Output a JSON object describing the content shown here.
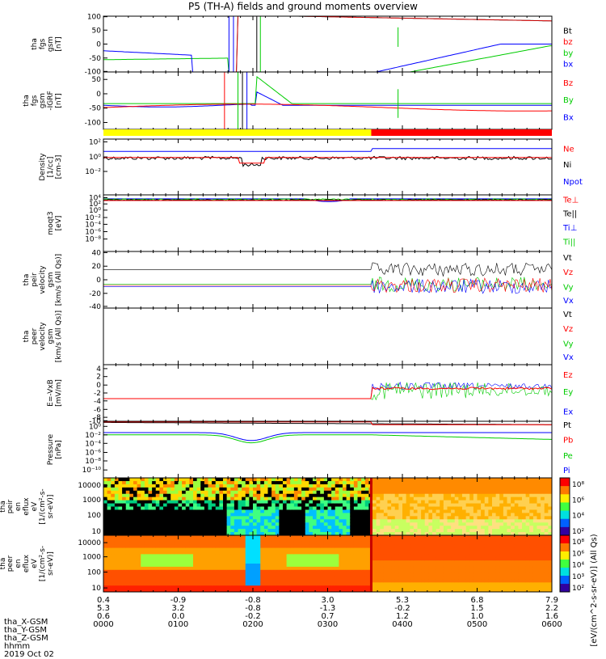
{
  "title": "P5 (TH-A) fields and ground moments overview",
  "colors": {
    "black": "#000000",
    "red": "#ff0000",
    "green": "#00cc00",
    "blue": "#0000ff",
    "yellow": "#ffff00"
  },
  "chart_data": [
    {
      "id": "fgs",
      "type": "line",
      "ylabel": [
        "tha",
        "fgs",
        "gsm",
        "[nT]"
      ],
      "yticks": [
        "100",
        "50",
        "0",
        "-50",
        "-100"
      ],
      "ylim": [
        -100,
        100
      ],
      "series": [
        {
          "name": "Bt",
          "color": "#000000"
        },
        {
          "name": "bz",
          "color": "#ff0000"
        },
        {
          "name": "by",
          "color": "#00cc00"
        },
        {
          "name": "bx",
          "color": "#0000ff"
        }
      ]
    },
    {
      "id": "fgs_igrf",
      "type": "line",
      "ylabel": [
        "tha",
        "fgs",
        "gsm",
        "-IGRF",
        "[nT]"
      ],
      "yticks": [
        "50",
        "0",
        "-50",
        "-100"
      ],
      "ylim": [
        -125,
        75
      ],
      "series": [
        {
          "name": "Bz",
          "color": "#ff0000"
        },
        {
          "name": "By",
          "color": "#00cc00"
        },
        {
          "name": "Bx",
          "color": "#0000ff"
        }
      ]
    },
    {
      "id": "mode",
      "type": "bar",
      "segments": [
        {
          "color": "#ffff00",
          "start_hhmm": "0000",
          "end_hhmm": "0335"
        },
        {
          "color": "#ff0000",
          "start_hhmm": "0335",
          "end_hhmm": "0600"
        }
      ]
    },
    {
      "id": "density",
      "type": "line",
      "log": true,
      "ylabel": [
        "Density",
        "[1/cc]",
        "[cm-3]"
      ],
      "yticks": [
        "10²",
        "10⁰",
        "10⁻²"
      ],
      "series": [
        {
          "name": "Ne",
          "color": "#ff0000"
        },
        {
          "name": "Ni",
          "color": "#000000"
        },
        {
          "name": "Npot",
          "color": "#0000ff"
        }
      ]
    },
    {
      "id": "temperature",
      "type": "line",
      "log": true,
      "ylabel": [
        "moqt3",
        "[eV]"
      ],
      "yticks": [
        "10⁴",
        "10²",
        "10⁰",
        "10⁻²",
        "10⁻⁴",
        "10⁻⁶",
        "10⁻⁸"
      ],
      "series": [
        {
          "name": "Te⊥",
          "color": "#ff0000"
        },
        {
          "name": "Te||",
          "color": "#000000"
        },
        {
          "name": "Ti⊥",
          "color": "#0000ff"
        },
        {
          "name": "Ti||",
          "color": "#00cc00"
        }
      ]
    },
    {
      "id": "peir_velocity",
      "type": "line",
      "ylabel": [
        "tha",
        "peir",
        "velocity",
        "gsm",
        "[km/s (All Qs)]"
      ],
      "yticks": [
        "40",
        "20",
        "0",
        "-20",
        "-40"
      ],
      "ylim": [
        -40,
        40
      ],
      "series": [
        {
          "name": "Vt",
          "color": "#000000"
        },
        {
          "name": "Vz",
          "color": "#ff0000"
        },
        {
          "name": "Vy",
          "color": "#00cc00"
        },
        {
          "name": "Vx",
          "color": "#0000ff"
        }
      ]
    },
    {
      "id": "peer_velocity",
      "type": "line",
      "ylabel": [
        "tha",
        "peer",
        "velocity",
        "gsm",
        "[km/s (All Qs)]"
      ],
      "yticks": [],
      "series": [
        {
          "name": "Vt",
          "color": "#000000"
        },
        {
          "name": "Vz",
          "color": "#ff0000"
        },
        {
          "name": "Vy",
          "color": "#00cc00"
        },
        {
          "name": "Vx",
          "color": "#0000ff"
        }
      ]
    },
    {
      "id": "efield",
      "type": "line",
      "ylabel": [
        "E=-VxB",
        "[mV/m]"
      ],
      "yticks": [
        "4",
        "2",
        "0",
        "-2",
        "-4",
        "-6",
        "-8",
        "-10"
      ],
      "ylim": [
        -10,
        4
      ],
      "series": [
        {
          "name": "Ez",
          "color": "#ff0000"
        },
        {
          "name": "Ey",
          "color": "#00cc00"
        },
        {
          "name": "Ex",
          "color": "#0000ff"
        }
      ]
    },
    {
      "id": "pressure",
      "type": "line",
      "log": true,
      "ylabel": [
        "Pressure",
        "[nPa]"
      ],
      "yticks": [
        "10⁰",
        "10⁻²",
        "10⁻⁴",
        "10⁻⁶",
        "10⁻⁸",
        "10⁻¹⁰"
      ],
      "series": [
        {
          "name": "Pt",
          "color": "#000000"
        },
        {
          "name": "Pb",
          "color": "#ff0000"
        },
        {
          "name": "Pe",
          "color": "#00cc00"
        },
        {
          "name": "Pi",
          "color": "#0000ff"
        }
      ]
    },
    {
      "id": "peir_spec",
      "type": "heatmap",
      "ylabel": [
        "tha",
        "peir",
        "en",
        "eflux",
        "eV",
        "[1/(cm²-s-",
        "sr-eV)]"
      ],
      "yticks": [
        "10000",
        "1000",
        "100",
        "10"
      ]
    },
    {
      "id": "peer_spec",
      "type": "heatmap",
      "ylabel": [
        "tha",
        "peer",
        "en",
        "eflux",
        "eV",
        "[1/(cm²-s-",
        "sr-eV)]"
      ],
      "yticks": [
        "10000",
        "1000",
        "100",
        "10"
      ]
    }
  ],
  "colorbar": {
    "label": "[eV/(cm^2-s-sr-eV)] (All Qs)",
    "ticks_top": [
      "10⁸",
      "10⁶",
      "10⁴",
      "10²"
    ],
    "ticks_bottom": [
      "10⁸",
      "10⁶",
      "10⁴",
      "10³",
      "10²"
    ]
  },
  "x_axis": {
    "hhmm": [
      "0000",
      "0100",
      "0200",
      "0300",
      "0400",
      "0500",
      "0600"
    ],
    "x_gsm": [
      "0.4",
      "-0.9",
      "-0.8",
      "3.0",
      "5.3",
      "6.8",
      "7.9"
    ],
    "y_gsm": [
      "5.3",
      "3.2",
      "-0.8",
      "-1.3",
      "-0.2",
      "1.5",
      "2.2"
    ],
    "z_gsm": [
      "0.6",
      "0.0",
      "-0.2",
      "0.7",
      "1.2",
      "1.0",
      "1.6"
    ]
  },
  "footer": {
    "row_labels": [
      "tha_X-GSM",
      "tha_Y-GSM",
      "tha_Z-GSM",
      "hhmm"
    ],
    "date": "2019 Oct 02"
  }
}
